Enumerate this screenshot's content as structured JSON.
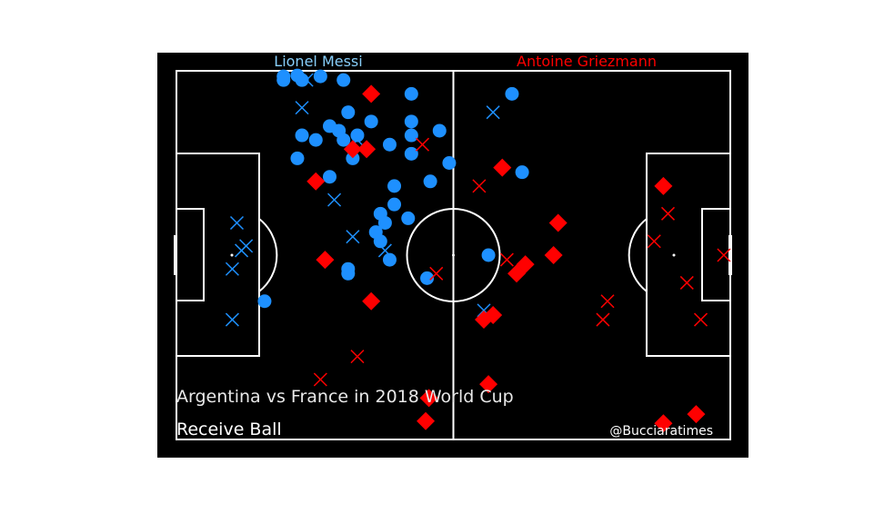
{
  "chart_data": {
    "type": "scatter",
    "title": "Argentina vs France in 2018 World Cup",
    "subtitle": "Receive Ball",
    "credit": "@Bucciaratimes",
    "background": "#000000",
    "line_color": "#ffffff",
    "pitch": {
      "length": 120,
      "width": 80
    },
    "players": [
      {
        "name": "Lionel Messi",
        "color": "#1e90ff",
        "label_color": "#87cefa"
      },
      {
        "name": "Antoine Griezmann",
        "color": "#ff0000",
        "label_color": "#ff0000"
      }
    ],
    "series": [
      {
        "player": "Lionel Messi",
        "marker": "circle",
        "outcome": "successful",
        "color": "#1e90ff",
        "points": [
          [
            23.2,
            1.2
          ],
          [
            23.2,
            2.0
          ],
          [
            26.2,
            1.0
          ],
          [
            27.2,
            2.0
          ],
          [
            31.2,
            1.2
          ],
          [
            36.2,
            2.0
          ],
          [
            50.9,
            5.0
          ],
          [
            72.7,
            5.0
          ],
          [
            27.2,
            14.0
          ],
          [
            30.2,
            15.0
          ],
          [
            33.2,
            12.0
          ],
          [
            35.2,
            13.0
          ],
          [
            36.2,
            15.0
          ],
          [
            37.2,
            9.0
          ],
          [
            39.2,
            14.0
          ],
          [
            42.2,
            11.0
          ],
          [
            38.2,
            19.0
          ],
          [
            26.2,
            19.0
          ],
          [
            46.2,
            16.0
          ],
          [
            50.9,
            11.0
          ],
          [
            50.9,
            14.0
          ],
          [
            50.9,
            18.0
          ],
          [
            57.0,
            13.0
          ],
          [
            59.1,
            20.0
          ],
          [
            74.9,
            22.0
          ],
          [
            33.2,
            23.0
          ],
          [
            47.2,
            25.0
          ],
          [
            55.0,
            24.0
          ],
          [
            47.2,
            29.0
          ],
          [
            44.2,
            31.0
          ],
          [
            45.2,
            33.0
          ],
          [
            50.2,
            32.0
          ],
          [
            43.2,
            35.0
          ],
          [
            44.2,
            37.0
          ],
          [
            46.2,
            41.0
          ],
          [
            37.2,
            43.0
          ],
          [
            37.2,
            44.0
          ],
          [
            67.6,
            40.0
          ],
          [
            54.3,
            45.0
          ],
          [
            19.1,
            50.0
          ]
        ]
      },
      {
        "player": "Lionel Messi",
        "marker": "x",
        "outcome": "unsuccessful",
        "color": "#1e90ff",
        "points": [
          [
            28.2,
            2.0
          ],
          [
            27.2,
            8.0
          ],
          [
            68.6,
            9.0
          ],
          [
            34.2,
            28.0
          ],
          [
            13.1,
            33.0
          ],
          [
            15.1,
            38.0
          ],
          [
            14.1,
            39.0
          ],
          [
            12.1,
            43.0
          ],
          [
            38.2,
            36.0
          ],
          [
            45.2,
            39.0
          ],
          [
            12.1,
            54.0
          ],
          [
            66.6,
            52.0
          ],
          [
            39.2,
            15.0
          ]
        ]
      },
      {
        "player": "Antoine Griezmann",
        "marker": "diamond",
        "outcome": "successful",
        "color": "#ff0000",
        "points": [
          [
            42.2,
            5.0
          ],
          [
            38.2,
            17.0
          ],
          [
            41.2,
            17.0
          ],
          [
            30.2,
            24.0
          ],
          [
            70.6,
            21.0
          ],
          [
            105.5,
            25.0
          ],
          [
            82.7,
            33.0
          ],
          [
            81.7,
            40.0
          ],
          [
            75.6,
            42.0
          ],
          [
            73.7,
            44.0
          ],
          [
            32.2,
            41.0
          ],
          [
            42.2,
            50.0
          ],
          [
            66.6,
            54.0
          ],
          [
            68.6,
            53.0
          ],
          [
            67.6,
            68.0
          ],
          [
            54.7,
            71.0
          ],
          [
            54.0,
            76.0
          ],
          [
            105.5,
            76.5
          ],
          [
            112.6,
            74.5
          ]
        ]
      },
      {
        "player": "Antoine Griezmann",
        "marker": "x",
        "outcome": "unsuccessful",
        "color": "#ff0000",
        "points": [
          [
            53.3,
            16.0
          ],
          [
            65.6,
            25.0
          ],
          [
            106.5,
            31.0
          ],
          [
            103.5,
            37.0
          ],
          [
            71.6,
            41.0
          ],
          [
            56.3,
            44.0
          ],
          [
            110.6,
            46.0
          ],
          [
            93.4,
            50.0
          ],
          [
            92.4,
            54.0
          ],
          [
            113.6,
            54.0
          ],
          [
            118.6,
            40.0
          ],
          [
            39.2,
            62.0
          ],
          [
            31.2,
            67.0
          ]
        ]
      }
    ]
  }
}
